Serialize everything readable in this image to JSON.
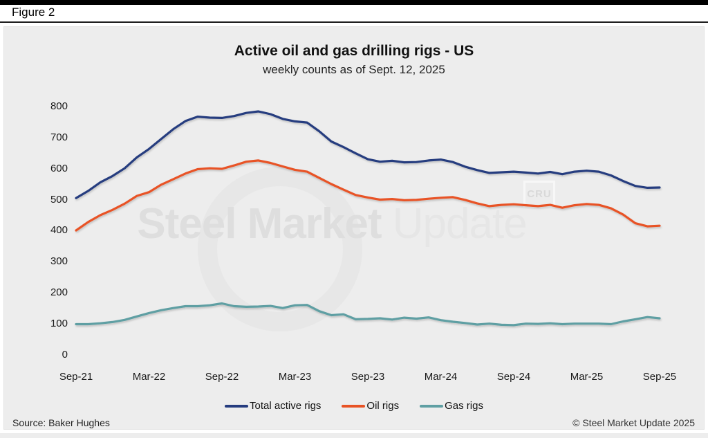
{
  "figure_label": "Figure 2",
  "watermark": {
    "bold": "Steel Market",
    "light": "Update",
    "badge": "CRU"
  },
  "footer": {
    "source": "Source: Baker Hughes",
    "copyright": "© Steel Market Update 2025"
  },
  "colors": {
    "total_rigs": "#253c7f",
    "oil_rigs": "#e85325",
    "gas_rigs": "#5f9fa3",
    "panel_background": "#ededed",
    "top_bar": "#000000"
  },
  "chart_data": {
    "type": "line",
    "title": "Active oil and gas drilling rigs - US",
    "subtitle": "weekly counts as of Sept. 12, 2025",
    "x_unit": "months since Sep-2021, weekly counts approximated at monthly resolution",
    "x_tick_labels": [
      "Sep-21",
      "Mar-22",
      "Sep-22",
      "Mar-23",
      "Sep-23",
      "Mar-24",
      "Sep-24",
      "Mar-25",
      "Sep-25"
    ],
    "y_ticks": [
      0,
      100,
      200,
      300,
      400,
      500,
      600,
      700,
      800
    ],
    "ylim": [
      0,
      800
    ],
    "grid": false,
    "legend_position": "bottom",
    "series": [
      {
        "name": "Total active rigs",
        "color": "#253c7f",
        "values": [
          505,
          528,
          556,
          576,
          601,
          636,
          663,
          695,
          727,
          753,
          767,
          764,
          763,
          769,
          779,
          784,
          775,
          760,
          752,
          748,
          720,
          687,
          669,
          649,
          630,
          622,
          625,
          620,
          621,
          626,
          629,
          621,
          606,
          595,
          586,
          588,
          590,
          587,
          584,
          589,
          582,
          590,
          593,
          590,
          578,
          560,
          544,
          538,
          539
        ]
      },
      {
        "name": "Oil rigs",
        "color": "#e85325",
        "values": [
          401,
          428,
          450,
          467,
          487,
          512,
          524,
          548,
          566,
          584,
          598,
          601,
          599,
          610,
          622,
          626,
          618,
          607,
          596,
          590,
          570,
          550,
          532,
          515,
          507,
          500,
          502,
          498,
          499,
          503,
          506,
          508,
          499,
          488,
          479,
          483,
          485,
          482,
          479,
          483,
          474,
          482,
          486,
          483,
          472,
          452,
          424,
          414,
          416
        ]
      },
      {
        "name": "Gas rigs",
        "color": "#5f9fa3",
        "values": [
          99,
          99,
          102,
          106,
          113,
          124,
          135,
          144,
          151,
          157,
          157,
          160,
          166,
          157,
          155,
          156,
          158,
          151,
          160,
          161,
          141,
          128,
          131,
          115,
          116,
          118,
          114,
          120,
          117,
          121,
          112,
          107,
          103,
          98,
          101,
          97,
          96,
          101,
          100,
          102,
          99,
          101,
          101,
          101,
          99,
          108,
          115,
          122,
          118
        ]
      }
    ]
  }
}
